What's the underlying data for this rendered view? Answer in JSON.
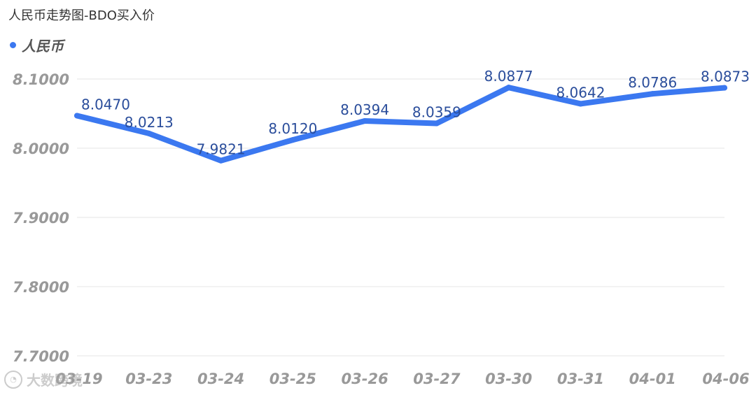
{
  "title": "人民币走势图-BDO买入价",
  "legend": {
    "label": "人民币",
    "color": "#3b78f0"
  },
  "watermark": {
    "text": "大数跨境"
  },
  "chart_data": {
    "type": "line",
    "categories": [
      "03-19",
      "03-23",
      "03-24",
      "03-25",
      "03-26",
      "03-27",
      "03-30",
      "03-31",
      "04-01",
      "04-06"
    ],
    "series": [
      {
        "name": "人民币",
        "color": "#3b78f0",
        "values": [
          8.047,
          8.0213,
          7.9821,
          8.012,
          8.0394,
          8.0359,
          8.0877,
          8.0642,
          8.0786,
          8.0873
        ],
        "labels": [
          "8.0470",
          "8.0213",
          "7.9821",
          "8.0120",
          "8.0394",
          "8.0359",
          "8.0877",
          "8.0642",
          "8.0786",
          "8.0873"
        ]
      }
    ],
    "yticks": [
      "8.1000",
      "8.0000",
      "7.9000",
      "7.8000",
      "7.7000"
    ],
    "ytick_values": [
      8.1,
      8.0,
      7.9,
      7.8,
      7.7
    ],
    "ylim": [
      7.7,
      8.1
    ],
    "grid": true,
    "legend_position": "top-left"
  }
}
